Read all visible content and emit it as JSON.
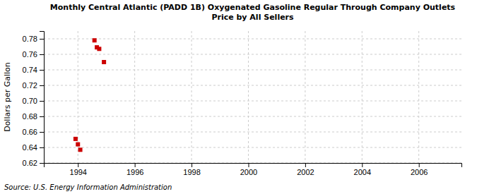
{
  "chart_data": {
    "type": "scatter",
    "title": "Monthly Central Atlantic (PADD 1B) Oxygenated Gasoline Regular Through Company Outlets\nPrice by All Sellers",
    "ylabel": "Dollars per Gallon",
    "annotations": [
      "Source: U.S. Energy Information Administration"
    ],
    "x": [
      1993.917,
      1994.0,
      1994.083,
      1994.583,
      1994.667,
      1994.75,
      1994.917
    ],
    "values": [
      0.651,
      0.644,
      0.637,
      0.778,
      0.769,
      0.767,
      0.75
    ],
    "color": "#cc0000",
    "marker": "square",
    "xlim": [
      1992.8,
      2007.5
    ],
    "ylim": [
      0.62,
      0.79
    ],
    "xticks": [
      1994,
      1996,
      1998,
      2000,
      2002,
      2004,
      2006
    ],
    "yticks": [
      0.62,
      0.64,
      0.66,
      0.68,
      {
        "value": 0.7,
        "label": "0.70"
      },
      0.72,
      0.74,
      0.76,
      0.78
    ],
    "grid": true
  }
}
